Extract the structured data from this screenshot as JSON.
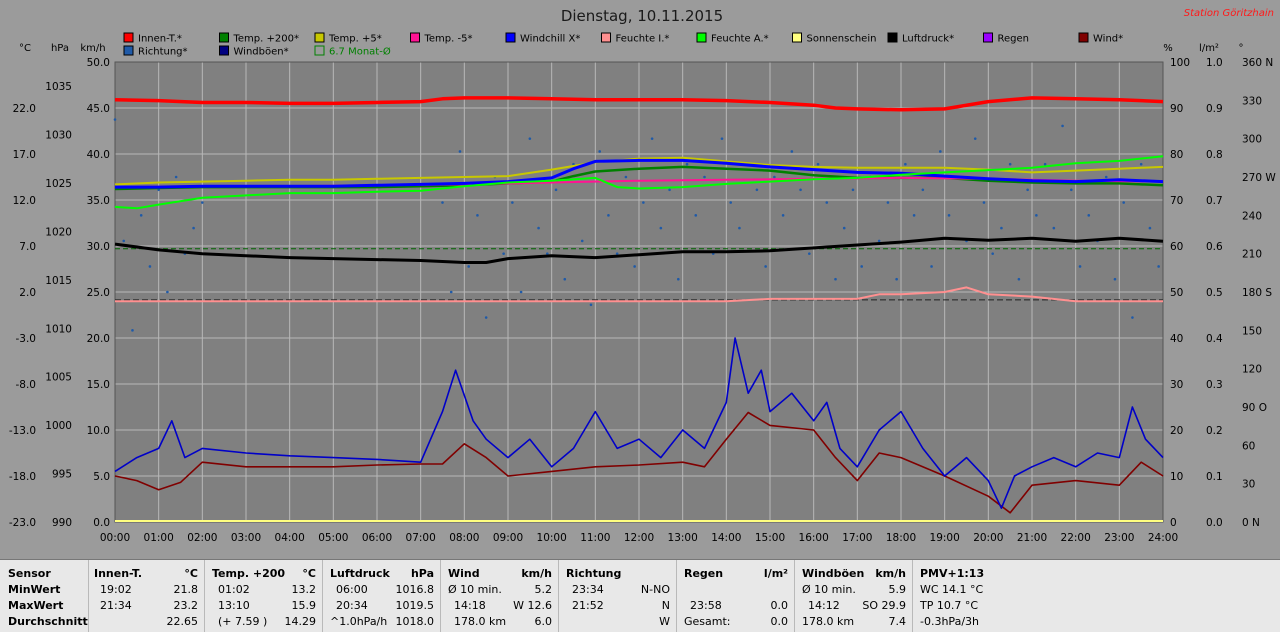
{
  "title": "Dienstag, 10.11.2015",
  "station": "Station Göritzhain",
  "legend": [
    {
      "label": "Innen-T.*",
      "color": "#ff0000"
    },
    {
      "label": "Temp. +200*",
      "color": "#008000"
    },
    {
      "label": "Temp. +5*",
      "color": "#c8c800"
    },
    {
      "label": "Temp. -5*",
      "color": "#ff1493"
    },
    {
      "label": "Windchill X*",
      "color": "#0000ff"
    },
    {
      "label": "Feuchte I.*",
      "color": "#ff9090"
    },
    {
      "label": "Feuchte A.*",
      "color": "#00ff00"
    },
    {
      "label": "Sonnenschein",
      "color": "#ffff80"
    },
    {
      "label": "Luftdruck*",
      "color": "#000000"
    },
    {
      "label": "Regen",
      "color": "#9a00ff"
    },
    {
      "label": "Wind*",
      "color": "#800000"
    },
    {
      "label": "Richtung*",
      "color": "#1f5aa8"
    },
    {
      "label": "Windböen*",
      "color": "#000080"
    },
    {
      "label": "6.7 Monat-Ø",
      "color": "#008000"
    }
  ],
  "chart_data": {
    "type": "line",
    "title": "Dienstag, 10.11.2015",
    "x_ticks": [
      "00:00",
      "01:00",
      "02:00",
      "03:00",
      "04:00",
      "05:00",
      "06:00",
      "07:00",
      "08:00",
      "09:00",
      "10:00",
      "11:00",
      "12:00",
      "13:00",
      "14:00",
      "15:00",
      "16:00",
      "17:00",
      "18:00",
      "19:00",
      "20:00",
      "21:00",
      "22:00",
      "23:00",
      "24:00"
    ],
    "axes": {
      "temp_c": {
        "label": "°C",
        "ticks": [
          "22.0",
          "17.0",
          "12.0",
          "7.0",
          "2.0",
          "-3.0",
          "-8.0",
          "-13.0",
          "-18.0",
          "-23.0"
        ],
        "range": [
          -23,
          27
        ]
      },
      "pressure_hpa": {
        "label": "hPa",
        "ticks": [
          "1035",
          "1030",
          "1025",
          "1020",
          "1015",
          "1010",
          "1005",
          "1000",
          "995",
          "990"
        ],
        "range": [
          990,
          1037.5
        ]
      },
      "speed_kmh": {
        "label": "km/h",
        "ticks": [
          "50.0",
          "45.0",
          "40.0",
          "35.0",
          "30.0",
          "25.0",
          "20.0",
          "15.0",
          "10.0",
          "5.0",
          "0.0"
        ],
        "range": [
          0,
          50
        ]
      },
      "humidity_pct": {
        "label": "%",
        "ticks": [
          "100",
          "90",
          "80",
          "70",
          "60",
          "50",
          "40",
          "30",
          "20",
          "10",
          "0"
        ],
        "range": [
          0,
          100
        ]
      },
      "rain_lm2": {
        "label": "l/m²",
        "ticks": [
          "1.0",
          "0.9",
          "0.8",
          "0.7",
          "0.6",
          "0.5",
          "0.4",
          "0.3",
          "0.2",
          "0.1",
          "0.0"
        ],
        "range": [
          0,
          1
        ]
      },
      "direction_deg": {
        "label": "°",
        "ticks": [
          "360 N",
          "330",
          "300",
          "270 W",
          "240",
          "210",
          "180 S",
          "150",
          "120",
          "90 O",
          "60",
          "30",
          "0 N"
        ],
        "range": [
          0,
          360
        ]
      }
    },
    "grid": true,
    "series": [
      {
        "name": "Innen-T.*",
        "axis": "temp_c",
        "x": [
          0,
          1,
          2,
          3,
          4,
          5,
          6,
          7,
          7.5,
          8,
          9,
          10,
          11,
          12,
          13,
          14,
          15,
          16,
          16.5,
          17,
          18,
          19,
          20,
          21,
          22,
          23,
          24
        ],
        "y": [
          22.9,
          22.8,
          22.6,
          22.6,
          22.5,
          22.5,
          22.6,
          22.7,
          23.0,
          23.1,
          23.1,
          23.0,
          22.9,
          22.9,
          22.9,
          22.8,
          22.6,
          22.3,
          22.0,
          21.9,
          21.8,
          21.9,
          22.7,
          23.1,
          23.0,
          22.9,
          22.7
        ]
      },
      {
        "name": "Temp. +200*",
        "axis": "temp_c",
        "x": [
          0,
          1,
          2,
          3,
          4,
          5,
          6,
          7,
          8,
          9,
          10,
          10.5,
          11,
          12,
          13,
          14,
          15,
          16,
          17,
          18,
          19,
          20,
          21,
          22,
          23,
          24
        ],
        "y": [
          13.2,
          13.3,
          13.4,
          13.4,
          13.4,
          13.4,
          13.4,
          13.5,
          13.6,
          13.8,
          14.0,
          14.6,
          15.1,
          15.4,
          15.6,
          15.4,
          15.2,
          14.7,
          14.4,
          14.4,
          14.4,
          14.1,
          13.9,
          13.8,
          13.8,
          13.6
        ]
      },
      {
        "name": "Temp. +5*",
        "axis": "temp_c",
        "x": [
          0,
          1,
          2,
          3,
          4,
          5,
          6,
          7,
          8,
          9,
          10,
          11,
          12,
          13,
          14,
          15,
          16,
          17,
          18,
          19,
          20,
          21,
          22,
          23,
          24
        ],
        "y": [
          13.7,
          13.9,
          14.0,
          14.1,
          14.2,
          14.2,
          14.3,
          14.4,
          14.5,
          14.6,
          15.3,
          16.1,
          16.5,
          16.6,
          16.2,
          15.8,
          15.6,
          15.5,
          15.5,
          15.5,
          15.3,
          15.0,
          15.2,
          15.4,
          15.6
        ]
      },
      {
        "name": "Temp. -5*",
        "axis": "temp_c",
        "x": [
          0,
          2,
          4,
          6,
          8,
          10,
          12,
          14,
          16,
          18,
          20,
          22,
          24
        ],
        "y": [
          13.4,
          13.5,
          13.5,
          13.6,
          13.7,
          13.9,
          14.1,
          14.2,
          14.3,
          14.4,
          14.3,
          14.1,
          14.0
        ]
      },
      {
        "name": "Windchill X*",
        "axis": "temp_c",
        "x": [
          0,
          1,
          2,
          3,
          4,
          5,
          6,
          7,
          8,
          9,
          10,
          10.5,
          11,
          12,
          13,
          14,
          15,
          16,
          17,
          18,
          19,
          20,
          21,
          22,
          23,
          24
        ],
        "y": [
          13.4,
          13.4,
          13.5,
          13.5,
          13.5,
          13.5,
          13.6,
          13.7,
          13.8,
          14.0,
          14.4,
          15.4,
          16.2,
          16.3,
          16.3,
          16.0,
          15.6,
          15.3,
          15.0,
          14.9,
          14.6,
          14.3,
          14.1,
          14.0,
          14.2,
          14.0
        ]
      },
      {
        "name": "Feuchte I.*",
        "axis": "humidity_pct",
        "x": [
          0,
          1,
          2,
          3,
          4,
          5,
          6,
          7,
          8,
          9,
          10,
          11,
          12,
          13,
          14,
          15,
          16,
          17,
          17.5,
          18,
          19,
          19.5,
          20,
          21,
          22,
          23,
          24
        ],
        "y": [
          48,
          48,
          48,
          48,
          48,
          48,
          48,
          48,
          48,
          48,
          48,
          48,
          48,
          48,
          48,
          48.5,
          48.5,
          48.5,
          49.5,
          49.5,
          50,
          51,
          49.5,
          49,
          48,
          48,
          48
        ]
      },
      {
        "name": "Feuchte A.*",
        "axis": "humidity_pct",
        "x": [
          0,
          0.5,
          1,
          2,
          3,
          4,
          5,
          6,
          7,
          8,
          9,
          10,
          11,
          11.5,
          12,
          13,
          14,
          15,
          16,
          17,
          18,
          19,
          20,
          21,
          22,
          23,
          24
        ],
        "y": [
          68.5,
          68.2,
          69,
          70.5,
          71,
          71.5,
          71.5,
          71.8,
          72,
          73,
          73.8,
          74.2,
          74.8,
          72.8,
          72.5,
          72.8,
          73.5,
          74,
          74.5,
          74.8,
          75.5,
          76,
          76.5,
          77,
          78,
          78.5,
          79.5
        ]
      },
      {
        "name": "Luftdruck*",
        "axis": "pressure_hpa",
        "x": [
          0,
          1,
          2,
          3,
          4,
          5,
          6,
          7,
          8,
          8.5,
          9,
          10,
          11,
          12,
          13,
          14,
          15,
          16,
          17,
          18,
          19,
          20,
          21,
          22,
          23,
          24
        ],
        "y": [
          1018.7,
          1018.1,
          1017.7,
          1017.5,
          1017.3,
          1017.2,
          1017.1,
          1017.0,
          1016.8,
          1016.8,
          1017.2,
          1017.5,
          1017.3,
          1017.6,
          1017.9,
          1017.9,
          1018.0,
          1018.3,
          1018.6,
          1018.9,
          1019.3,
          1019.1,
          1019.3,
          1019.0,
          1019.3,
          1019.0
        ]
      },
      {
        "name": "Wind*",
        "axis": "speed_kmh",
        "x": [
          0,
          0.5,
          1,
          1.5,
          2,
          3,
          4,
          5,
          6,
          7,
          7.5,
          8,
          8.5,
          9,
          10,
          11,
          12,
          13,
          13.5,
          14,
          14.5,
          15,
          16,
          16.5,
          17,
          17.5,
          18,
          19,
          20,
          20.5,
          21,
          22,
          23,
          23.5,
          24
        ],
        "y": [
          5.0,
          4.5,
          3.5,
          4.3,
          6.5,
          6.0,
          6.0,
          6.0,
          6.2,
          6.3,
          6.3,
          8.5,
          7.0,
          5.0,
          5.5,
          6.0,
          6.2,
          6.5,
          6.0,
          9.0,
          11.9,
          10.5,
          10.0,
          7.0,
          4.5,
          7.5,
          7.0,
          5.0,
          2.8,
          1.0,
          4.0,
          4.5,
          4.0,
          6.5,
          5.0
        ]
      },
      {
        "name": "Windböen*",
        "axis": "speed_kmh",
        "x": [
          0,
          0.5,
          1,
          1.3,
          1.6,
          2,
          3,
          4,
          5,
          6,
          7,
          7.5,
          7.8,
          8.2,
          8.5,
          9,
          9.5,
          10,
          10.5,
          11,
          11.5,
          12,
          12.5,
          13,
          13.5,
          14,
          14.2,
          14.5,
          14.8,
          15,
          15.5,
          16,
          16.3,
          16.6,
          17,
          17.5,
          18,
          18.5,
          19,
          19.5,
          20,
          20.3,
          20.6,
          21,
          21.5,
          22,
          22.5,
          23,
          23.3,
          23.6,
          24
        ],
        "y": [
          5.5,
          7.0,
          8.0,
          11.0,
          7.0,
          8.0,
          7.5,
          7.2,
          7.0,
          6.8,
          6.5,
          12.0,
          16.5,
          11.0,
          9.0,
          7.0,
          9.0,
          6.0,
          8.0,
          12.0,
          8.0,
          9.0,
          7.0,
          10.0,
          8.0,
          13.0,
          20.0,
          14.0,
          16.5,
          12.0,
          14.0,
          11.0,
          13.0,
          8.0,
          6.0,
          10.0,
          12.0,
          8.0,
          5.0,
          7.0,
          4.5,
          1.5,
          5.0,
          6.0,
          7.0,
          6.0,
          7.5,
          7.0,
          12.5,
          9.0,
          7.0
        ]
      }
    ],
    "monthly_avg": {
      "name": "6.7 Monat-Ø",
      "axis": "temp_c",
      "value": 6.7
    },
    "direction_points": {
      "name": "Richtung*",
      "axis": "direction_deg",
      "x": [
        0,
        0.2,
        0.4,
        0.6,
        0.8,
        1.0,
        1.2,
        1.4,
        1.6,
        1.8,
        2.0,
        7.5,
        7.7,
        7.9,
        8.1,
        8.3,
        8.5,
        8.7,
        8.9,
        9.1,
        9.3,
        9.5,
        9.7,
        9.9,
        10.1,
        10.3,
        10.5,
        10.7,
        10.9,
        11.1,
        11.3,
        11.5,
        11.7,
        11.9,
        12.1,
        12.3,
        12.5,
        12.7,
        12.9,
        13.1,
        13.3,
        13.5,
        13.7,
        13.9,
        14.1,
        14.3,
        14.5,
        14.7,
        14.9,
        15.1,
        15.3,
        15.5,
        15.7,
        15.9,
        16.1,
        16.3,
        16.5,
        16.7,
        16.9,
        17.1,
        17.3,
        17.5,
        17.7,
        17.9,
        18.1,
        18.3,
        18.5,
        18.7,
        18.9,
        19.1,
        19.3,
        19.5,
        19.7,
        19.9,
        20.1,
        20.3,
        20.5,
        20.7,
        20.9,
        21.1,
        21.3,
        21.5,
        21.7,
        21.9,
        22.1,
        22.3,
        22.5,
        22.7,
        22.9,
        23.1,
        23.3,
        23.5,
        23.7,
        23.9
      ],
      "y": [
        315,
        220,
        150,
        240,
        200,
        260,
        180,
        270,
        210,
        230,
        250,
        250,
        180,
        290,
        200,
        240,
        160,
        270,
        210,
        250,
        180,
        300,
        230,
        210,
        260,
        190,
        280,
        220,
        170,
        290,
        240,
        210,
        270,
        200,
        250,
        300,
        230,
        260,
        190,
        280,
        240,
        270,
        210,
        300,
        250,
        230,
        280,
        260,
        200,
        270,
        240,
        290,
        260,
        210,
        280,
        250,
        190,
        230,
        260,
        200,
        270,
        220,
        250,
        190,
        280,
        240,
        260,
        200,
        290,
        240,
        270,
        220,
        300,
        250,
        210,
        230,
        280,
        190,
        260,
        240,
        280,
        230,
        310,
        260,
        200,
        240,
        220,
        270,
        190,
        250,
        160,
        280,
        230,
        200
      ]
    }
  },
  "stats": {
    "sensor": {
      "h": "Sensor",
      "r1": "MinWert",
      "r2": "MaxWert",
      "r3": "Durchschnitt"
    },
    "innen": {
      "h1": "Innen-T.",
      "h2": "°C",
      "r1a": "19:02",
      "r1b": "21.8",
      "r2a": "21:34",
      "r2b": "23.2",
      "r3b": "22.65"
    },
    "temp": {
      "h1": "Temp. +200",
      "h2": "°C",
      "r1a": "01:02",
      "r1b": "13.2",
      "r2a": "13:10",
      "r2b": "15.9",
      "r3a": "(+ 7.59 )",
      "r3b": "14.29"
    },
    "druck": {
      "h1": "Luftdruck",
      "h2": "hPa",
      "r1a": "06:00",
      "r1b": "1016.8",
      "r2a": "20:34",
      "r2b": "1019.5",
      "r3a": "^1.0hPa/h",
      "r3b": "1018.0"
    },
    "wind": {
      "h1": "Wind",
      "h2": "km/h",
      "r1a": "Ø 10 min.",
      "r1b": "5.2",
      "r2a": "14:18",
      "r2b": "W 12.6",
      "r3a": "178.0 km",
      "r3b": "6.0"
    },
    "richtung": {
      "h1": "Richtung",
      "r1a": "23:34",
      "r1b": "N-NO",
      "r2a": "21:52",
      "r2b": "N",
      "r3b": "W"
    },
    "regen": {
      "h1": "Regen",
      "h2": "l/m²",
      "r2a": "23:58",
      "r2b": "0.0",
      "r3a": "Gesamt:",
      "r3b": "0.0"
    },
    "boeen": {
      "h1": "Windböen",
      "h2": "km/h",
      "r1a": "Ø 10 min.",
      "r1b": "5.9",
      "r2a": "14:12",
      "r2b": "SO 29.9",
      "r3a": "178.0 km",
      "r3b": "7.4"
    },
    "pmv": {
      "h1": "PMV+1:13",
      "r1": "WC 14.1 °C",
      "r2": "TP 10.7 °C",
      "r3": "-0.3hPa/3h"
    }
  }
}
